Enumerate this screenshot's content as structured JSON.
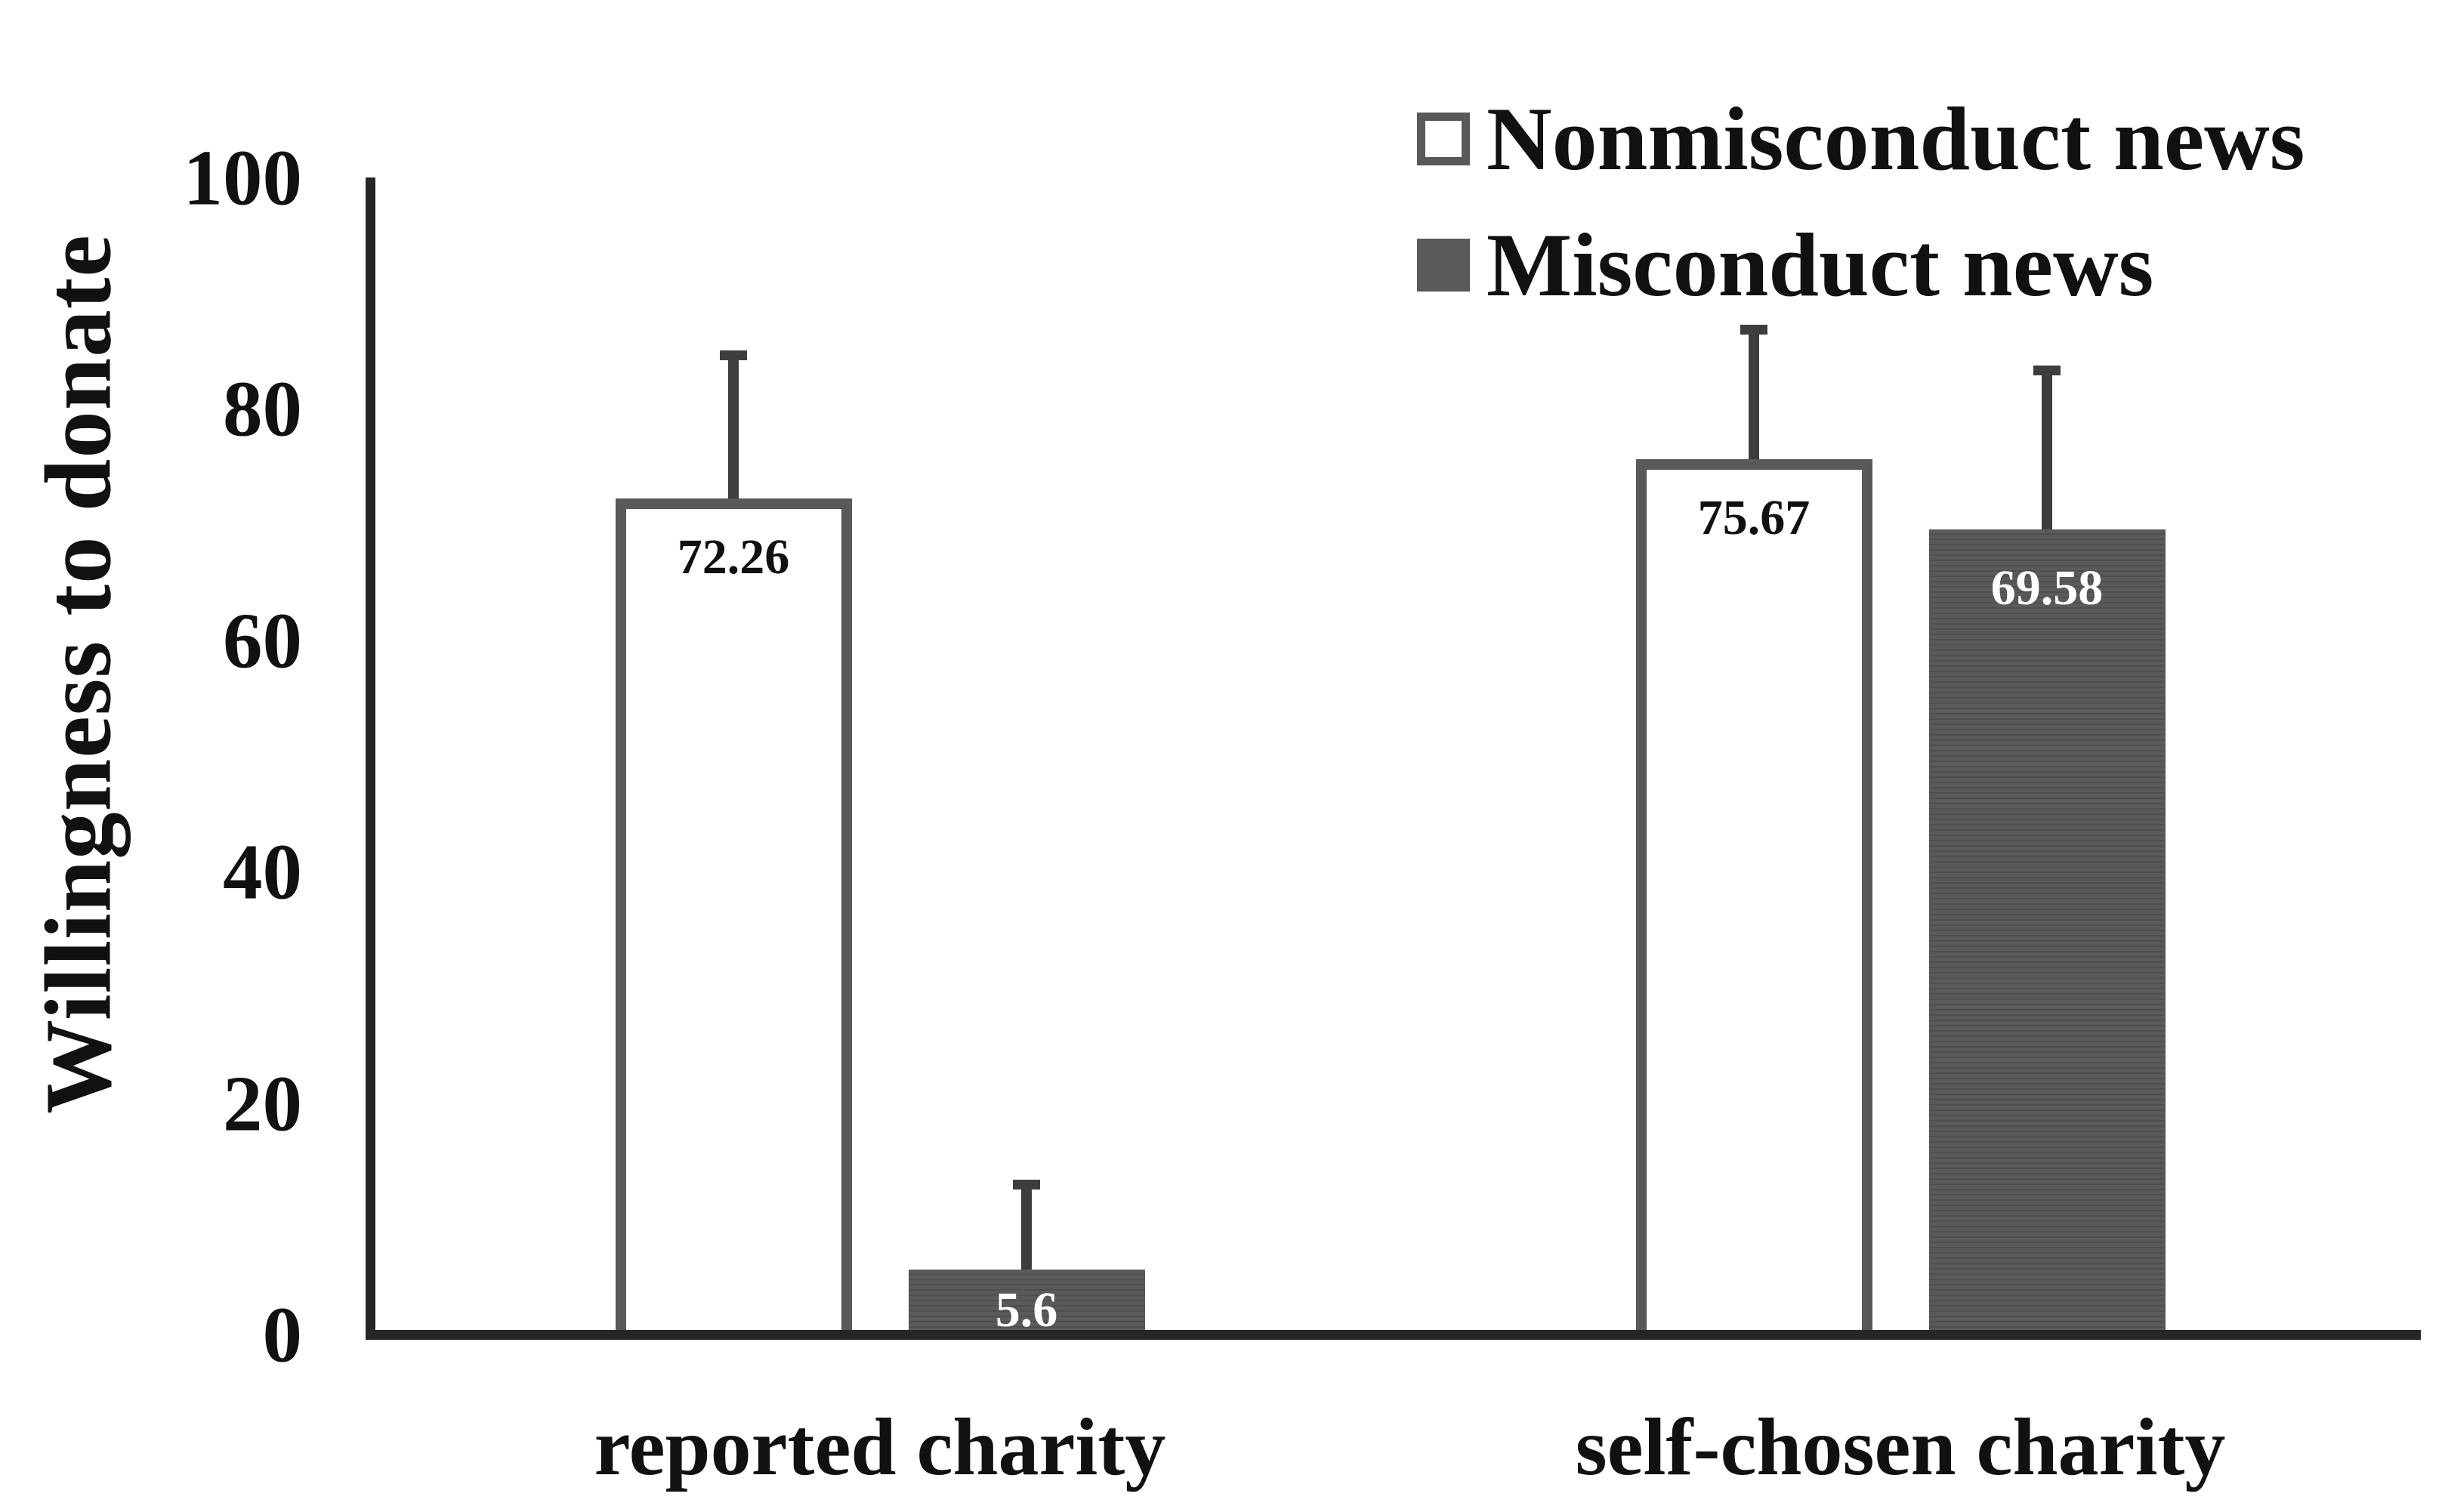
{
  "chart_data": {
    "type": "bar",
    "title": "",
    "ylabel": "Willingness to donate",
    "xlabel": "",
    "categories": [
      "reported charity",
      "self-chosen charity"
    ],
    "series": [
      {
        "name": "Nonmisconduct news",
        "values": [
          72.26,
          75.67
        ],
        "errors_upper": [
          12.4,
          11.2
        ],
        "style": "outlined-white"
      },
      {
        "name": "Misconduct news",
        "values": [
          5.6,
          69.58
        ],
        "errors_upper": [
          7.4,
          13.8
        ],
        "style": "filled-gray"
      }
    ],
    "yticks": [
      0,
      20,
      40,
      60,
      80,
      100
    ],
    "ylim": [
      0,
      100
    ],
    "grid": false,
    "legend_position": "top-right"
  },
  "colors": {
    "background": "#ffffff",
    "text": "#111111",
    "axis": "#262626",
    "error_bar": "#3d3d3d",
    "nonmisconduct_fill": "#ffffff",
    "nonmisconduct_border": "#595959",
    "misconduct_fill": "#5a5a5a",
    "value_label_on_white": "#111111",
    "value_label_on_dark": "#ffffff"
  }
}
